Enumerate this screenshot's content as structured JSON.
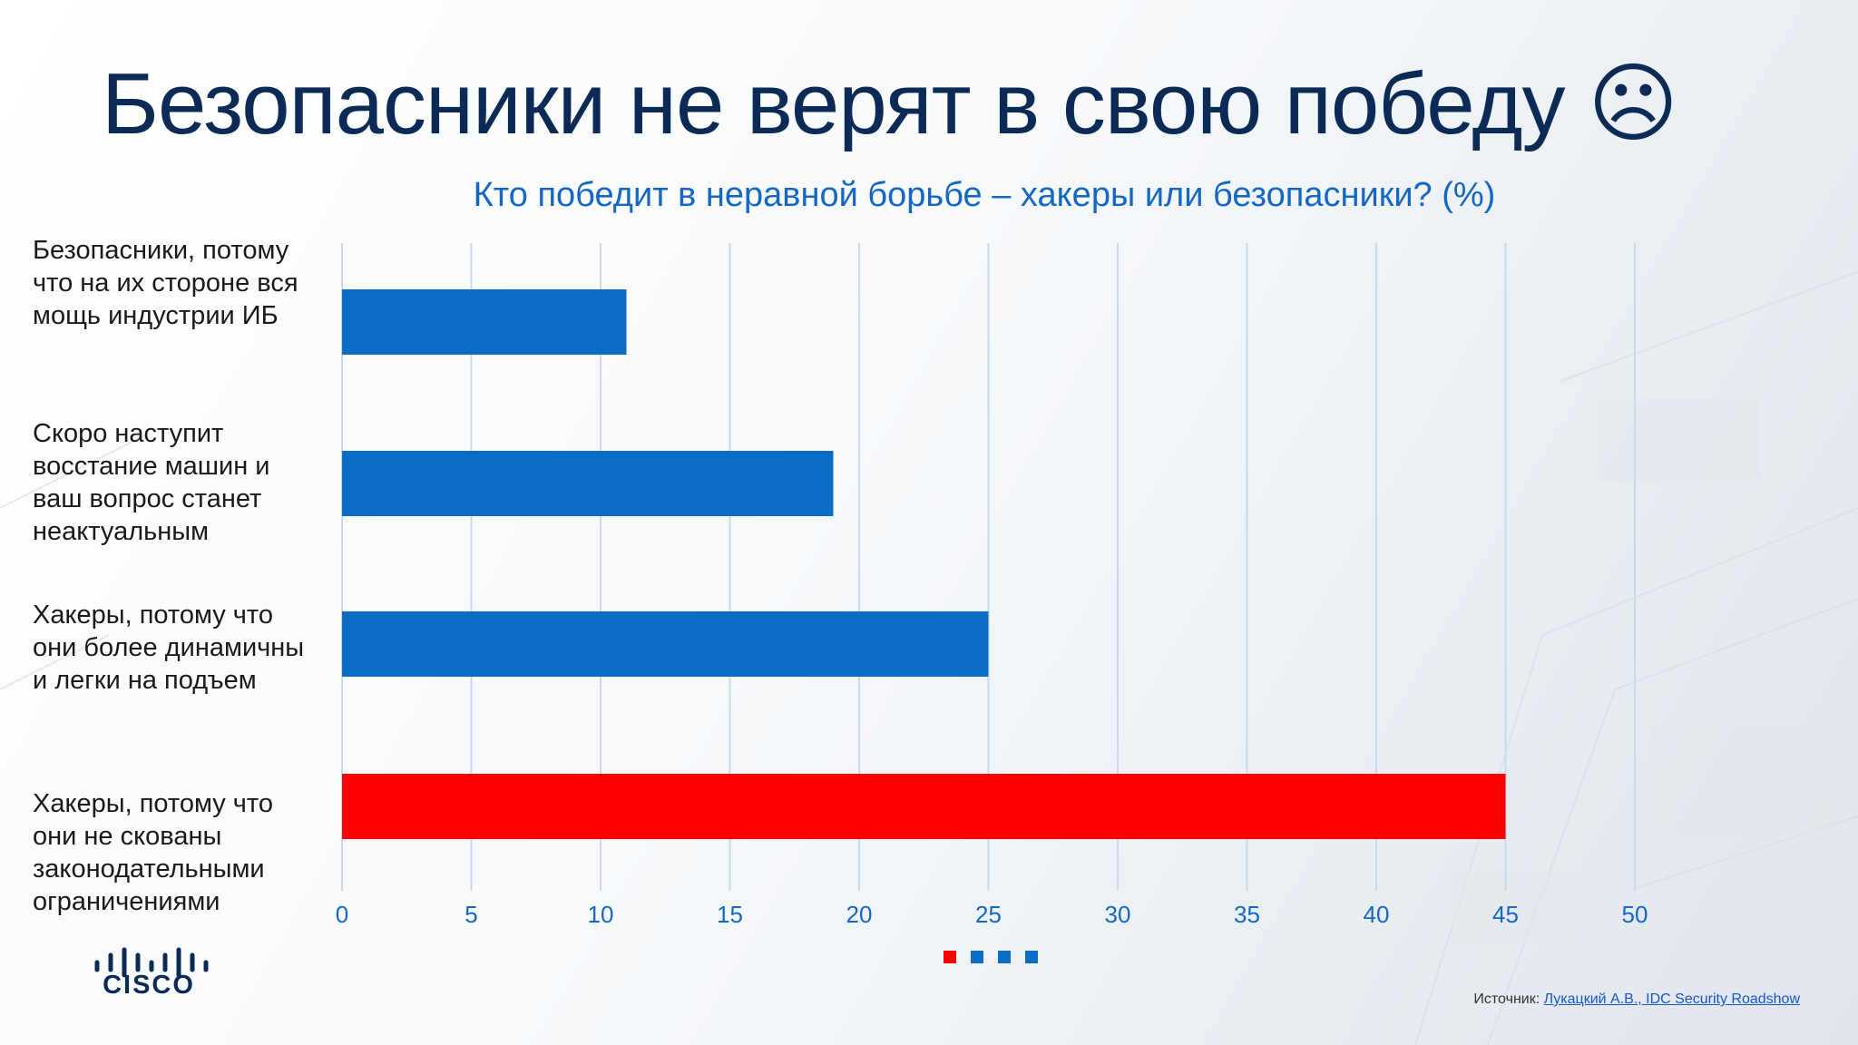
{
  "title": "Безопасники не верят в свою победу ☹",
  "colors": {
    "title": "#0b2a56",
    "accent": "#1468c4",
    "bar_default": "#0a6cc4",
    "bar_highlight": "#ff0000",
    "grid": "#c9daf0"
  },
  "chart_data": {
    "type": "bar",
    "orientation": "horizontal",
    "title": "Кто победит в неравной борьбе – хакеры или безопасники? (%)",
    "categories": [
      "Безопасники, потому что на их стороне вся мощь индустрии ИБ",
      "Скоро наступит восстание машин и ваш вопрос станет неактуальным",
      "Хакеры, потому что они более динамичны и легки на подъем",
      "Хакеры, потому что они не скованы законодательными ограничениями"
    ],
    "values": [
      11,
      19,
      25,
      45
    ],
    "highlight_index": 3,
    "xlim": [
      0,
      50
    ],
    "xticks": [
      0,
      5,
      10,
      15,
      20,
      25,
      30,
      35,
      40,
      45,
      50
    ],
    "grid": true,
    "xlabel": "",
    "ylabel": ""
  },
  "logo": {
    "word": "CISCO",
    "icon": "cisco-bridge-icon"
  },
  "pager": {
    "icon": "slide-progress-dots",
    "count": 4,
    "active": 0
  },
  "source": {
    "prefix": "Источник:",
    "link_text": "Лукацкий А.В., IDC Security Roadshow"
  }
}
